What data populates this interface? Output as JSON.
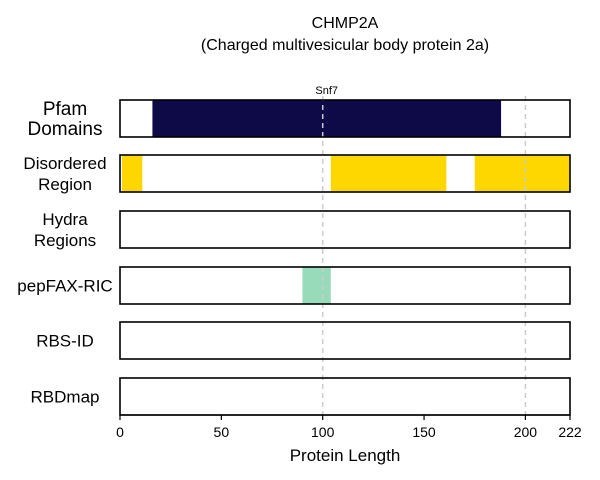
{
  "chart_data": {
    "type": "bar",
    "title": "CHMP2A",
    "subtitle": "(Charged multivesicular body protein 2a)",
    "xlabel": "Protein Length",
    "xlim": [
      0,
      222
    ],
    "xticks": [
      "0",
      "50",
      "100",
      "150",
      "200",
      "222"
    ],
    "xtick_values": [
      0,
      50,
      100,
      150,
      200,
      222
    ],
    "reference_lines": [
      100,
      200
    ],
    "tracks": [
      {
        "name": "Pfam Domains",
        "label_lines": [
          "Pfam",
          "Domains"
        ],
        "segments": [
          {
            "start": 16,
            "end": 188,
            "color": "#0d0a47",
            "label": "Snf7"
          }
        ]
      },
      {
        "name": "Disordered Region",
        "label_lines": [
          "Disordered",
          "Region"
        ],
        "segments": [
          {
            "start": 1,
            "end": 11,
            "color": "#ffd700"
          },
          {
            "start": 104,
            "end": 161,
            "color": "#ffd700"
          },
          {
            "start": 175,
            "end": 222,
            "color": "#ffd700"
          }
        ]
      },
      {
        "name": "Hydra Regions",
        "label_lines": [
          "Hydra",
          "Regions"
        ],
        "segments": []
      },
      {
        "name": "pepFAX-RIC",
        "label_lines": [
          "pepFAX-RIC"
        ],
        "segments": [
          {
            "start": 90,
            "end": 104,
            "color": "#98dbbb"
          }
        ]
      },
      {
        "name": "RBS-ID",
        "label_lines": [
          "RBS-ID"
        ],
        "segments": []
      },
      {
        "name": "RBDmap",
        "label_lines": [
          "RBDmap"
        ],
        "segments": []
      }
    ]
  }
}
